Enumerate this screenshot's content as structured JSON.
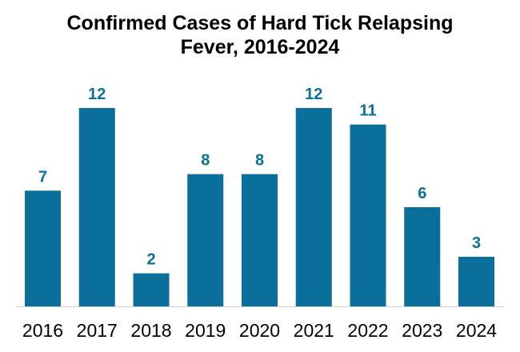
{
  "chart_data": {
    "type": "bar",
    "title_lines": [
      "Confirmed Cases of Hard Tick Relapsing",
      "Fever, 2016-2024"
    ],
    "categories": [
      "2016",
      "2017",
      "2018",
      "2019",
      "2020",
      "2021",
      "2022",
      "2023",
      "2024"
    ],
    "values": [
      7,
      12,
      2,
      8,
      8,
      12,
      11,
      6,
      3
    ],
    "xlabel": "",
    "ylabel": "",
    "ylim": [
      0,
      12
    ],
    "grid": false,
    "legend": "none",
    "bar_color": "#0a6f9b",
    "label_color": "#0a6f9b",
    "axis_color": "#cfcfcf"
  }
}
